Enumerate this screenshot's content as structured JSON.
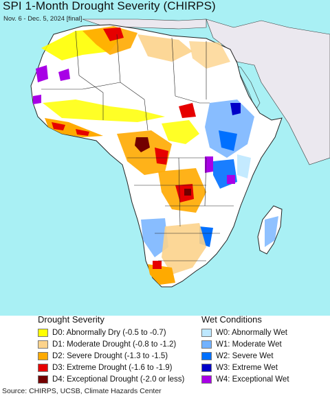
{
  "header": {
    "title": "SPI 1-Month Drought Severity (CHIRPS)",
    "subtitle": "Nov. 6 - Dec. 5, 2024 [final]"
  },
  "colors": {
    "ocean": "#a9f0f4",
    "land_base": "#ffffff",
    "outside_region": "#ebe8ef",
    "borders": "#222222"
  },
  "legend": {
    "drought": {
      "title": "Drought Severity",
      "items": [
        {
          "label": "D0: Abnormally Dry (-0.5 to -0.7)",
          "color": "#ffff00"
        },
        {
          "label": "D1: Moderate Drought (-0.8 to -1.2)",
          "color": "#fcd38c"
        },
        {
          "label": "D2: Severe Drought (-1.3 to -1.5)",
          "color": "#ffaa00"
        },
        {
          "label": "D3: Extreme Drought (-1.6 to -1.9)",
          "color": "#e60000"
        },
        {
          "label": "D4: Exceptional Drought (-2.0 or less)",
          "color": "#730000"
        }
      ]
    },
    "wet": {
      "title": "Wet Conditions",
      "items": [
        {
          "label": "W0: Abnormally Wet",
          "color": "#bee8ff"
        },
        {
          "label": "W1: Moderate Wet",
          "color": "#73b2ff"
        },
        {
          "label": "W2: Severe Wet",
          "color": "#0070ff"
        },
        {
          "label": "W3: Extreme Wet",
          "color": "#0000c8"
        },
        {
          "label": "W4: Exceptional Wet",
          "color": "#a800e6"
        }
      ]
    }
  },
  "footer": {
    "source": "Source: CHIRPS, UCSB, Climate Hazards Center"
  }
}
